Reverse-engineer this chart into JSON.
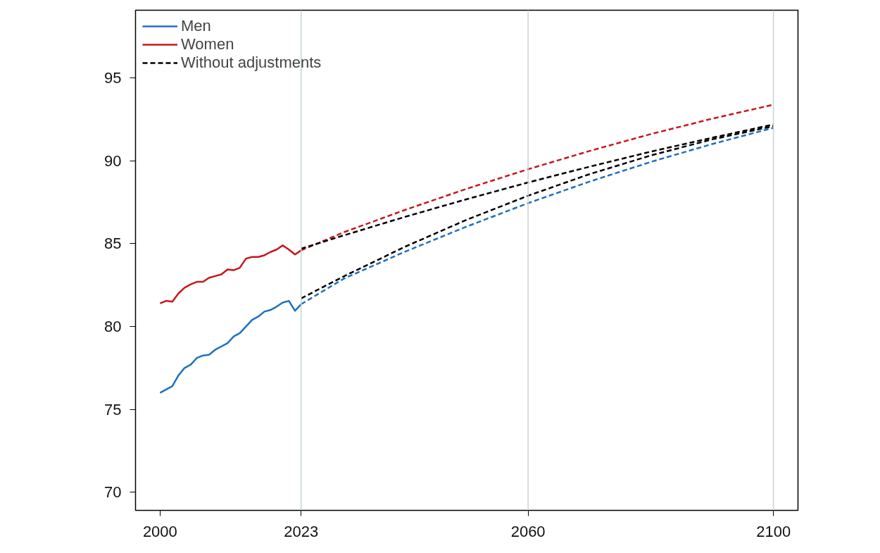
{
  "chart_data": {
    "type": "line",
    "xlim": [
      1996,
      2104
    ],
    "ylim": [
      68.9,
      99.1
    ],
    "xticks": [
      2000,
      2023,
      2060,
      2100
    ],
    "yticks": [
      70,
      75,
      80,
      85,
      90,
      95
    ],
    "grid": false,
    "legend": "top left",
    "ref_lines": [
      {
        "axis": "x",
        "value": 2023,
        "color": "#c8d4d4"
      },
      {
        "axis": "x",
        "value": 2060,
        "color": "#c8d4d4"
      },
      {
        "axis": "x",
        "value": 2100,
        "color": "#c8d4d4"
      }
    ],
    "series": [
      {
        "name": "Men",
        "color": "#1f6fbf",
        "line_style": "solid",
        "x": [
          2000,
          2001,
          2002,
          2003,
          2004,
          2005,
          2006,
          2007,
          2008,
          2009,
          2010,
          2011,
          2012,
          2013,
          2014,
          2015,
          2016,
          2017,
          2018,
          2019,
          2020,
          2021,
          2022,
          2023
        ],
        "values": [
          76.0,
          76.2,
          76.4,
          77.05,
          77.5,
          77.7,
          78.1,
          78.25,
          78.3,
          78.6,
          78.8,
          79.0,
          79.4,
          79.6,
          80.0,
          80.4,
          80.6,
          80.9,
          81.0,
          81.2,
          81.45,
          81.55,
          80.95,
          81.35
        ]
      },
      {
        "name": "Women",
        "color": "#c8161d",
        "line_style": "solid",
        "x": [
          2000,
          2001,
          2002,
          2003,
          2004,
          2005,
          2006,
          2007,
          2008,
          2009,
          2010,
          2011,
          2012,
          2013,
          2014,
          2015,
          2016,
          2017,
          2018,
          2019,
          2020,
          2021,
          2022,
          2023
        ],
        "values": [
          81.4,
          81.55,
          81.5,
          82.0,
          82.35,
          82.55,
          82.7,
          82.7,
          82.95,
          83.05,
          83.15,
          83.45,
          83.4,
          83.55,
          84.1,
          84.2,
          84.2,
          84.3,
          84.5,
          84.65,
          84.9,
          84.65,
          84.35,
          84.6
        ]
      },
      {
        "color": "#1f6fbf",
        "line_style": "dashed",
        "x": [
          2023,
          2030,
          2040,
          2050,
          2060,
          2070,
          2080,
          2090,
          2100
        ],
        "values": [
          81.35,
          82.9,
          84.53,
          86.04,
          87.45,
          88.75,
          89.94,
          91.02,
          92.0
        ]
      },
      {
        "color": "#c8161d",
        "line_style": "dashed",
        "x": [
          2023,
          2030,
          2040,
          2050,
          2060,
          2070,
          2080,
          2090,
          2100
        ],
        "values": [
          84.6,
          85.7,
          87.05,
          88.32,
          89.5,
          90.6,
          91.62,
          92.55,
          93.4
        ]
      },
      {
        "name": "Without adjustments",
        "color": "#000000",
        "line_style": "dashed",
        "x": [
          2023,
          2030,
          2040,
          2050,
          2060,
          2070,
          2080,
          2090,
          2100
        ],
        "values": [
          84.7,
          85.51,
          86.63,
          87.69,
          88.7,
          89.65,
          90.56,
          91.4,
          92.2
        ]
      },
      {
        "color": "#000000",
        "line_style": "dashed",
        "x": [
          2023,
          2030,
          2040,
          2050,
          2060,
          2070,
          2080,
          2090,
          2100
        ],
        "values": [
          81.7,
          83.04,
          84.83,
          86.45,
          87.9,
          89.2,
          90.33,
          91.3,
          92.1
        ]
      }
    ]
  }
}
